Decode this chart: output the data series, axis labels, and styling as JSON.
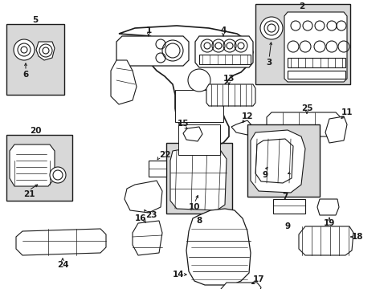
{
  "bg_color": "#ffffff",
  "line_color": "#1a1a1a",
  "shade_color": "#d8d8d8",
  "fig_w": 4.89,
  "fig_h": 3.6,
  "dpi": 100
}
